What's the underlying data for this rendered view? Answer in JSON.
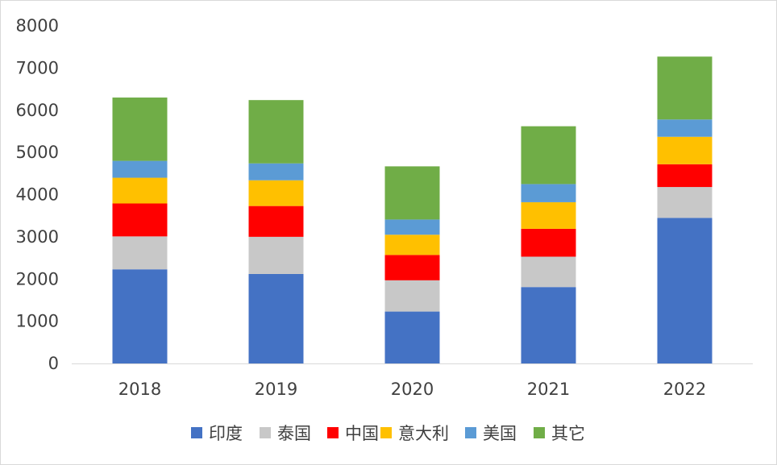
{
  "chart_data": {
    "type": "bar",
    "stacked": true,
    "categories": [
      "2018",
      "2019",
      "2020",
      "2021",
      "2022"
    ],
    "ylim": [
      0,
      8000
    ],
    "yticks": [
      0,
      1000,
      2000,
      3000,
      4000,
      5000,
      6000,
      7000,
      8000
    ],
    "grid": false,
    "legend_position": "bottom",
    "series": [
      {
        "name": "印度",
        "color": "#4472c4",
        "values": [
          2230,
          2120,
          1230,
          1810,
          3450
        ]
      },
      {
        "name": "泰国",
        "color": "#c8c8c8",
        "values": [
          780,
          880,
          740,
          720,
          730
        ]
      },
      {
        "name": "中国",
        "color": "#ff0000",
        "values": [
          780,
          730,
          600,
          660,
          540
        ]
      },
      {
        "name": "意大利",
        "color": "#ffc000",
        "values": [
          610,
          610,
          480,
          630,
          650
        ]
      },
      {
        "name": "美国",
        "color": "#5b9bd5",
        "values": [
          400,
          400,
          360,
          430,
          410
        ]
      },
      {
        "name": "其它",
        "color": "#70ad47",
        "values": [
          1500,
          1500,
          1260,
          1370,
          1490
        ]
      }
    ]
  }
}
